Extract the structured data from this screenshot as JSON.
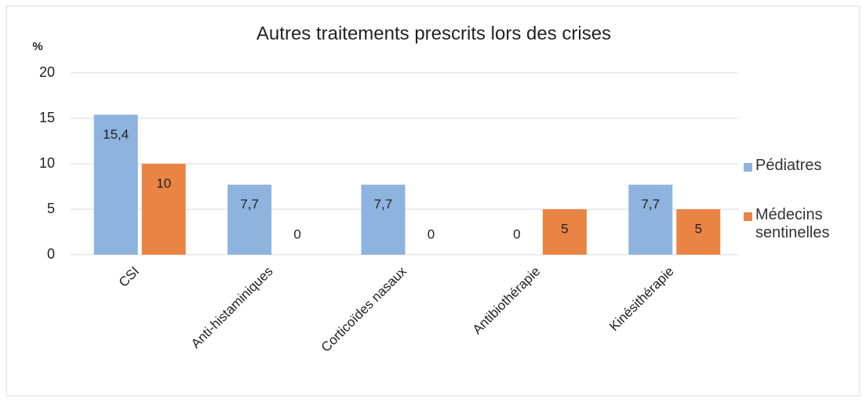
{
  "chart_data": {
    "type": "bar",
    "title": "Autres traitements prescrits lors des crises",
    "y_label": "%",
    "categories": [
      "CSI",
      "Anti-histaminiques",
      "Corticoïdes nasaux",
      "Antibiothérapie",
      "Kinésithérapie"
    ],
    "series": [
      {
        "name": "Pédiatres",
        "color": "#8db3de",
        "values": [
          15.4,
          7.7,
          7.7,
          0,
          7.7
        ],
        "value_labels": [
          "15,4",
          "7,7",
          "7,7",
          "0",
          "7,7"
        ]
      },
      {
        "name": "Médecins sentinelles",
        "color": "#ea8445",
        "values": [
          10,
          0,
          0,
          5,
          5
        ],
        "value_labels": [
          "10",
          "0",
          "0",
          "5",
          "5"
        ]
      }
    ],
    "ylim": [
      0,
      20
    ],
    "yticks": [
      0,
      5,
      10,
      15,
      20
    ],
    "grid": true,
    "legend": "right"
  }
}
